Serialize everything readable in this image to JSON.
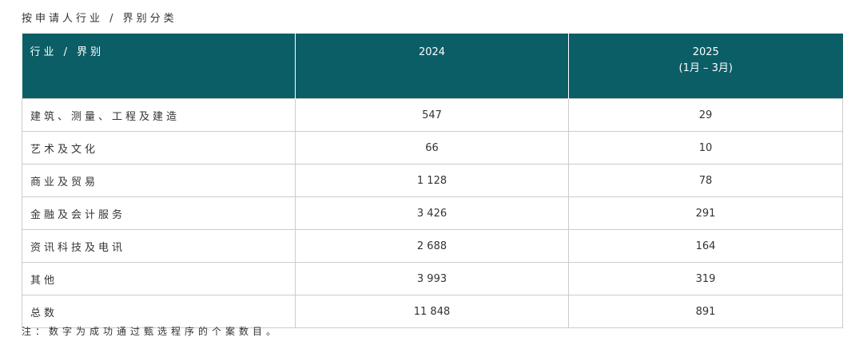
{
  "caption": "按申请人行业 / 界别分类",
  "table": {
    "header": [
      [
        "行业 / 界别"
      ],
      [
        "2024"
      ],
      [
        "2025",
        "(1月 – 3月)"
      ]
    ],
    "rows": [
      [
        "建筑、测量、工程及建造",
        "547",
        "29"
      ],
      [
        "艺术及文化",
        "66",
        "10"
      ],
      [
        "商业及贸易",
        "1 128",
        "78"
      ],
      [
        "金融及会计服务",
        "3 426",
        "291"
      ],
      [
        "资讯科技及电讯",
        "2 688",
        "164"
      ],
      [
        "其他",
        "3 993",
        "319"
      ],
      [
        "总数",
        "11 848",
        "891"
      ]
    ]
  },
  "note": "注：数字为成功通过甄选程序的个案数目。"
}
